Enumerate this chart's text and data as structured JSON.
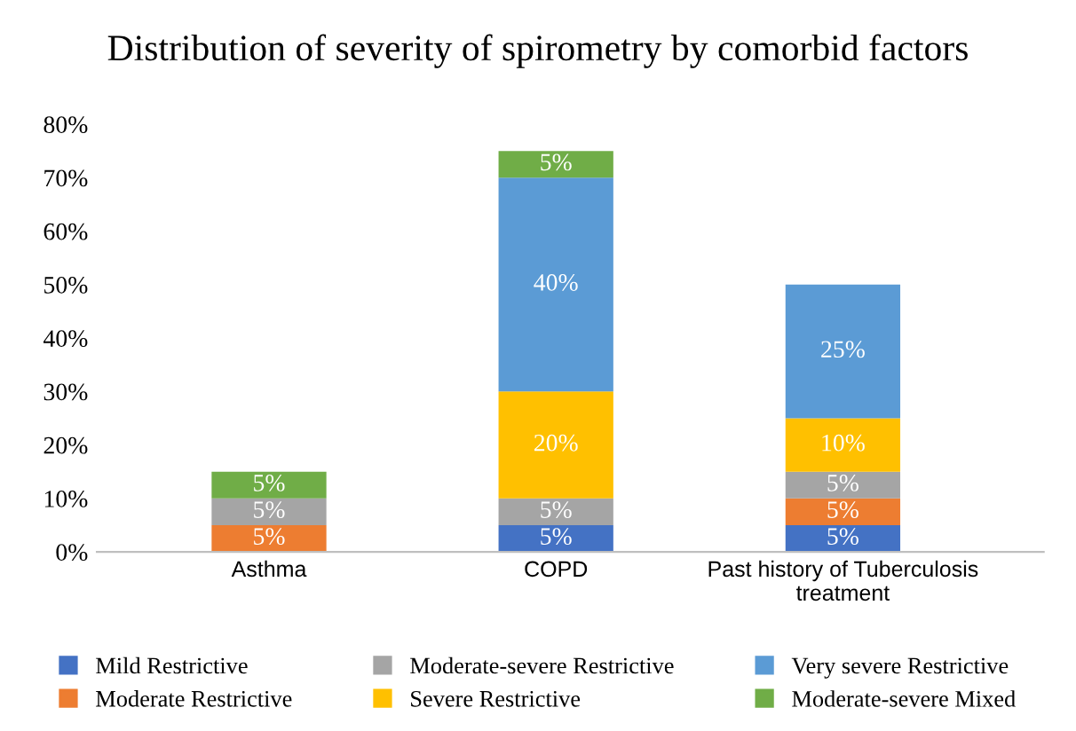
{
  "chart_data": {
    "type": "bar",
    "stacked": true,
    "title": "Distribution of severity of spirometry by comorbid factors",
    "categories": [
      "Asthma",
      "COPD",
      "Past history of Tuberculosis\ntreatment"
    ],
    "series": [
      {
        "name": "Mild Restrictive",
        "color": "#4472c4",
        "values": [
          null,
          5,
          5
        ],
        "value_labels": [
          null,
          "5%",
          "5%"
        ]
      },
      {
        "name": "Moderate Restrictive",
        "color": "#ed7d31",
        "values": [
          5,
          null,
          5
        ],
        "value_labels": [
          "5%",
          null,
          "5%"
        ]
      },
      {
        "name": "Moderate-severe Restrictive",
        "color": "#a5a5a5",
        "values": [
          5,
          5,
          5
        ],
        "value_labels": [
          "5%",
          "5%",
          "5%"
        ]
      },
      {
        "name": "Severe Restrictive",
        "color": "#ffc000",
        "values": [
          null,
          20,
          10
        ],
        "value_labels": [
          null,
          "20%",
          "10%"
        ]
      },
      {
        "name": "Very severe Restrictive",
        "color": "#5b9bd5",
        "values": [
          null,
          40,
          25
        ],
        "value_labels": [
          null,
          "40%",
          "25%"
        ]
      },
      {
        "name": "Moderate-severe Mixed",
        "color": "#70ad47",
        "values": [
          5,
          5,
          null
        ],
        "value_labels": [
          "5%",
          "5%",
          null
        ]
      }
    ],
    "ylim": [
      0,
      80
    ],
    "yticks": [
      {
        "value": 0,
        "label": "0%"
      },
      {
        "value": 10,
        "label": "10%"
      },
      {
        "value": 20,
        "label": "20%"
      },
      {
        "value": 30,
        "label": "30%"
      },
      {
        "value": 40,
        "label": "40%"
      },
      {
        "value": 50,
        "label": "50%"
      },
      {
        "value": 60,
        "label": "60%"
      },
      {
        "value": 70,
        "label": "70%"
      },
      {
        "value": 80,
        "label": "80%"
      }
    ],
    "grid": false,
    "legend": "bottom"
  }
}
